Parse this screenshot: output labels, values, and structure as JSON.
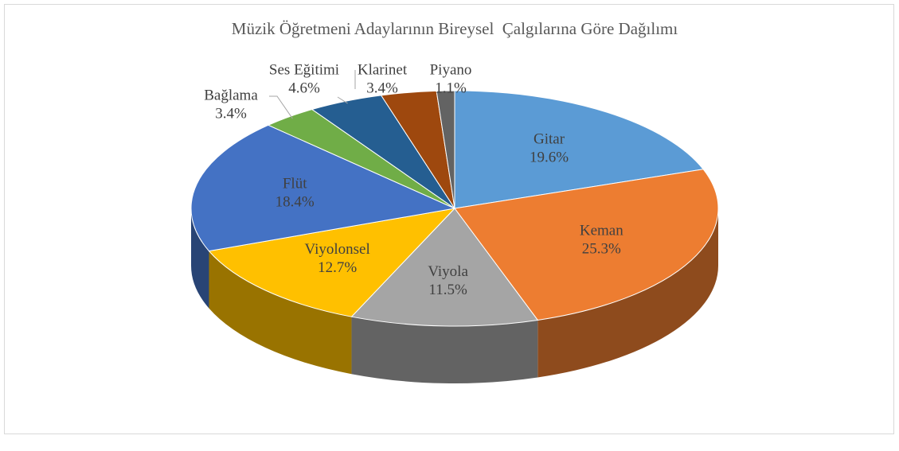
{
  "chart_data": {
    "type": "pie",
    "title": "Müzik Öğretmeni Adaylarının Bireysel  Çalgılarına Göre Dağılımı",
    "categories": [
      "Gitar",
      "Keman",
      "Viyola",
      "Viyolonsel",
      "Flüt",
      "Bağlama",
      "Ses Eğitimi",
      "Klarinet",
      "Piyano"
    ],
    "values": [
      19.6,
      25.3,
      11.5,
      12.7,
      18.4,
      3.4,
      4.6,
      3.4,
      1.1
    ],
    "value_labels": [
      "19.6%",
      "25.3%",
      "11.5%",
      "12.7%",
      "18.4%",
      "3.4%",
      "4.6%",
      "3.4%",
      "1.1%"
    ],
    "colors": [
      "#5b9bd5",
      "#ed7d31",
      "#a5a5a5",
      "#ffc000",
      "#4472c4",
      "#70ad47",
      "#255e91",
      "#9e480e",
      "#636363"
    ]
  }
}
